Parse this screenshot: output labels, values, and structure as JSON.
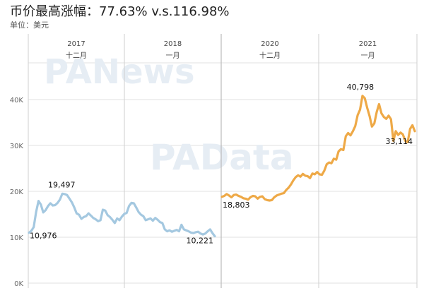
{
  "title": "币价最高涨幅：77.63% v.s.116.98%",
  "subtitle": "单位：美元",
  "watermarks": [
    "PANews",
    "PAData"
  ],
  "colors": {
    "series_2017": "#a4c8e0",
    "series_2020": "#eea947",
    "gridline": "#e2e2e2",
    "divider": "#cfcfcf",
    "axis_text": "#666666"
  },
  "chart_data": {
    "type": "line",
    "title": "币价最高涨幅：77.63% v.s.116.98%",
    "ylabel": "单位：美元",
    "ylim": [
      0,
      45000
    ],
    "yticks": [
      {
        "value": 0,
        "label": "0K"
      },
      {
        "value": 10000,
        "label": "10K"
      },
      {
        "value": 20000,
        "label": "20K"
      },
      {
        "value": 30000,
        "label": "30K"
      },
      {
        "value": 40000,
        "label": "40K"
      }
    ],
    "grid": true,
    "column_headers": [
      {
        "year": "2017",
        "month": "十二月"
      },
      {
        "year": "2018",
        "month": "一月"
      },
      {
        "year": "2020",
        "month": "十二月"
      },
      {
        "year": "2021",
        "month": "一月"
      }
    ],
    "series": [
      {
        "period": "2017-12 ~ 2018-01",
        "color": "#a4c8e0",
        "values": [
          10976,
          11400,
          12200,
          15500,
          17900,
          17100,
          15400,
          15900,
          16800,
          17400,
          16900,
          17000,
          17500,
          18200,
          19497,
          19400,
          19200,
          18400,
          17600,
          16500,
          15200,
          14900,
          14000,
          14400,
          14600,
          15200,
          14700,
          14200,
          13900,
          13500,
          13700,
          16000,
          15800,
          14800,
          14400,
          13800,
          13100,
          14100,
          13700,
          14500,
          15100,
          15300,
          16800,
          17500,
          17400,
          16500,
          15500,
          14900,
          14600,
          13700,
          13900,
          14100,
          13600,
          14200,
          13800,
          13300,
          13100,
          11700,
          11300,
          11500,
          11200,
          11400,
          11600,
          11300,
          12700,
          11700,
          11500,
          11300,
          11000,
          10900,
          11100,
          11200,
          10800,
          10600,
          10800,
          11300,
          11700,
          10900,
          10221
        ],
        "labels": [
          {
            "index": 0,
            "text": "10,976"
          },
          {
            "index": 14,
            "text": "19,497"
          },
          {
            "index": 78,
            "text": "10,221"
          }
        ]
      },
      {
        "period": "2020-12 ~ 2021-01",
        "color": "#eea947",
        "values": [
          18803,
          19000,
          19400,
          19100,
          18700,
          19200,
          19300,
          19000,
          18800,
          18500,
          18400,
          18200,
          18700,
          19000,
          18900,
          18400,
          18800,
          18900,
          18300,
          18100,
          18000,
          18100,
          18700,
          19100,
          19300,
          19500,
          19600,
          20300,
          20800,
          21500,
          22400,
          23100,
          23500,
          23200,
          23800,
          23400,
          23300,
          22900,
          23900,
          23700,
          24200,
          23700,
          23600,
          24500,
          25900,
          26300,
          26100,
          27100,
          26900,
          28700,
          29200,
          29000,
          32000,
          32700,
          32200,
          33100,
          34200,
          36600,
          37800,
          40798,
          40300,
          38200,
          36400,
          34100,
          34800,
          37300,
          39000,
          37000,
          36200,
          35800,
          36500,
          35700,
          31000,
          33100,
          32300,
          32800,
          32400,
          31000,
          30700,
          33600,
          34400,
          33114
        ],
        "labels": [
          {
            "index": 0,
            "text": "18,803"
          },
          {
            "index": 59,
            "text": "40,798"
          },
          {
            "index": 81,
            "text": "33,114"
          }
        ]
      }
    ]
  }
}
